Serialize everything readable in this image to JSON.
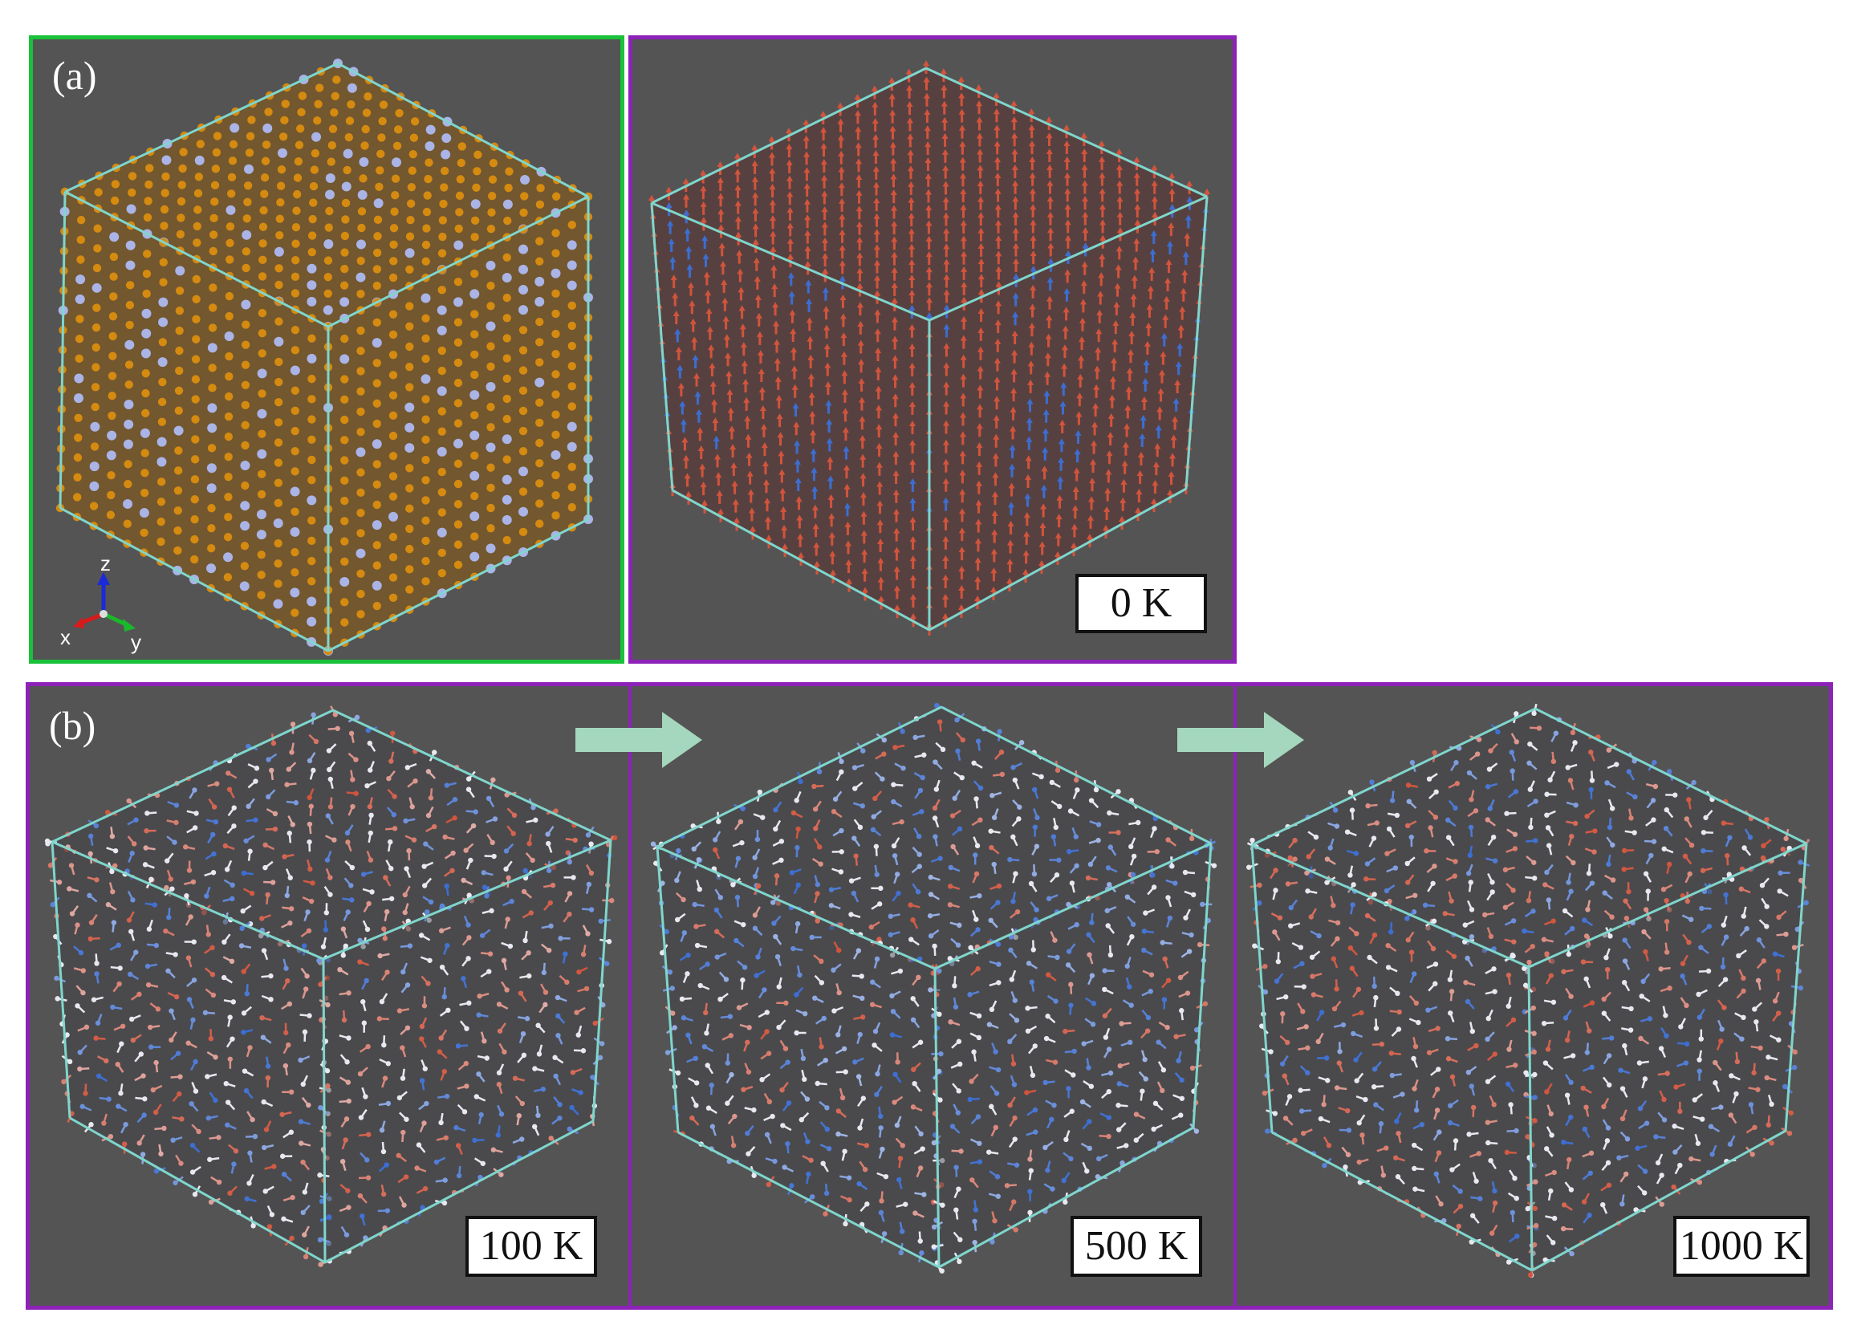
{
  "panel_a": {
    "label": "(a)",
    "temperature_label": "0 K",
    "axes": {
      "x": "x",
      "y": "y",
      "z": "z"
    }
  },
  "panel_b": {
    "label": "(b)",
    "temperature_labels": [
      "100 K",
      "500 K",
      "1000 K"
    ]
  },
  "colors": {
    "panel_background": "#545454",
    "structure_frame": "#19c23a",
    "spin_frame": "#8d22b8",
    "cell_edges": "#7fd6cc",
    "atom_majority": "#d58a10",
    "atom_minority": "#aab4e6",
    "spin_up": "#d2543c",
    "spin_down": "#3c6ed2",
    "spin_disordered": "#e8e8f0",
    "arrow": "#a4d7bd"
  }
}
